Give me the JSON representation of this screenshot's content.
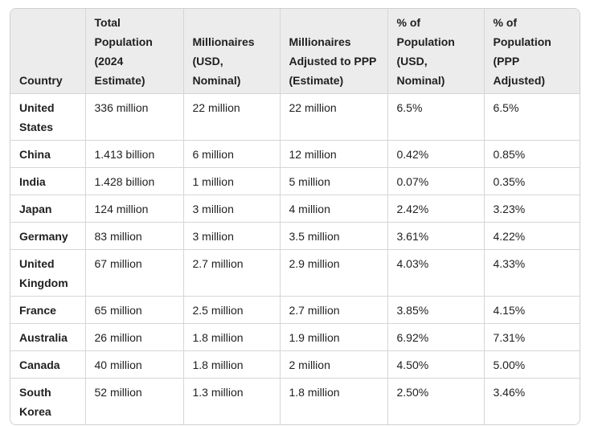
{
  "table": {
    "headers": [
      "Country",
      "Total Population (2024 Estimate)",
      "Millionaires (USD, Nominal)",
      "Millionaires Adjusted to PPP (Estimate)",
      "% of Population (USD, Nominal)",
      "% of Population (PPP Adjusted)"
    ],
    "rows": [
      [
        "United States",
        "336 million",
        "22 million",
        "22 million",
        "6.5%",
        "6.5%"
      ],
      [
        "China",
        "1.413 billion",
        "6 million",
        "12 million",
        "0.42%",
        "0.85%"
      ],
      [
        "India",
        "1.428 billion",
        "1 million",
        "5 million",
        "0.07%",
        "0.35%"
      ],
      [
        "Japan",
        "124 million",
        "3 million",
        "4 million",
        "2.42%",
        "3.23%"
      ],
      [
        "Germany",
        "83 million",
        "3 million",
        "3.5 million",
        "3.61%",
        "4.22%"
      ],
      [
        "United Kingdom",
        "67 million",
        "2.7 million",
        "2.9 million",
        "4.03%",
        "4.33%"
      ],
      [
        "France",
        "65 million",
        "2.5 million",
        "2.7 million",
        "3.85%",
        "4.15%"
      ],
      [
        "Australia",
        "26 million",
        "1.8 million",
        "1.9 million",
        "6.92%",
        "7.31%"
      ],
      [
        "Canada",
        "40 million",
        "1.8 million",
        "2 million",
        "4.50%",
        "5.00%"
      ],
      [
        "South Korea",
        "52 million",
        "1.3 million",
        "1.8 million",
        "2.50%",
        "3.46%"
      ]
    ]
  }
}
